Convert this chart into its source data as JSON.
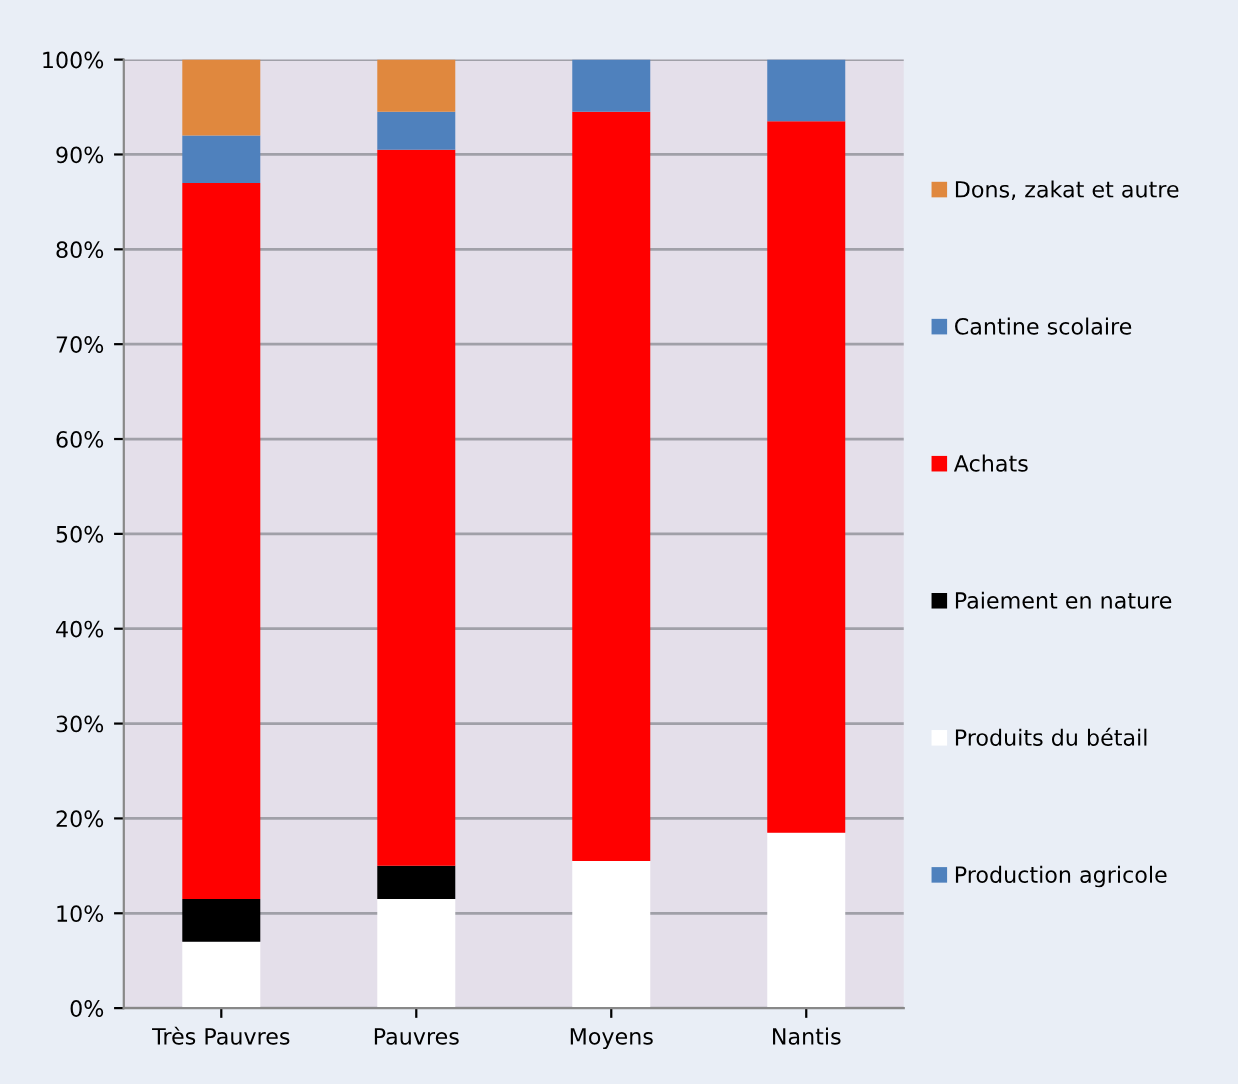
{
  "chart_data": {
    "type": "bar",
    "stacked": true,
    "categories": [
      "Très Pauvres",
      "Pauvres",
      "Moyens",
      "Nantis"
    ],
    "series": [
      {
        "name": "Production agricole",
        "color": "#4f81bd",
        "values": [
          0,
          0,
          0,
          0
        ]
      },
      {
        "name": "Produits du bétail",
        "color": "#ffffff",
        "values": [
          7,
          11.5,
          15.5,
          18.5
        ]
      },
      {
        "name": "Paiement en nature",
        "color": "#000000",
        "values": [
          4.5,
          3.5,
          0,
          0
        ]
      },
      {
        "name": "Achats",
        "color": "#ff0000",
        "values": [
          75.5,
          75.5,
          79,
          75
        ]
      },
      {
        "name": "Cantine scolaire",
        "color": "#4f81bd",
        "values": [
          5,
          4,
          5.5,
          6.5
        ]
      },
      {
        "name": "Dons, zakat et autre",
        "color": "#e0883e",
        "values": [
          8,
          5.5,
          0,
          0
        ]
      }
    ],
    "ylim": [
      0,
      100
    ],
    "yticks": [
      {
        "value": 0,
        "label": "0%"
      },
      {
        "value": 10,
        "label": "10%"
      },
      {
        "value": 20,
        "label": "20%"
      },
      {
        "value": 30,
        "label": "30%"
      },
      {
        "value": 40,
        "label": "40%"
      },
      {
        "value": 50,
        "label": "50%"
      },
      {
        "value": 60,
        "label": "60%"
      },
      {
        "value": 70,
        "label": "70%"
      },
      {
        "value": 80,
        "label": "80%"
      },
      {
        "value": 90,
        "label": "90%"
      },
      {
        "value": 100,
        "label": "100%"
      }
    ],
    "grid": "y",
    "legend": "right"
  }
}
